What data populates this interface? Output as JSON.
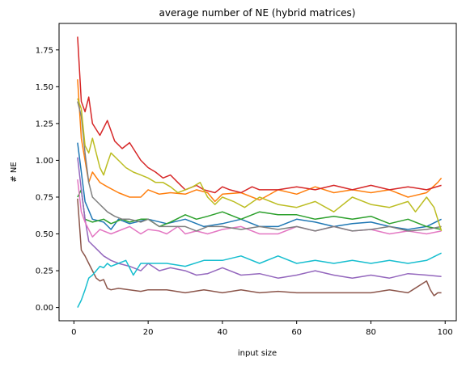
{
  "chart_data": {
    "type": "line",
    "title": "average number of NE (hybrid matrices)",
    "xlabel": "input size",
    "ylabel": "# NE",
    "xlim": [
      -4,
      103
    ],
    "ylim": [
      -0.09,
      1.93
    ],
    "xticks": [
      0,
      20,
      40,
      60,
      80,
      100
    ],
    "xtick_labels": [
      "0",
      "20",
      "40",
      "60",
      "80",
      "100"
    ],
    "yticks": [
      0.0,
      0.25,
      0.5,
      0.75,
      1.0,
      1.25,
      1.5,
      1.75
    ],
    "ytick_labels": [
      "0.00",
      "0.25",
      "0.50",
      "0.75",
      "1.00",
      "1.25",
      "1.50",
      "1.75"
    ],
    "grid": false,
    "legend": "none",
    "series": [
      {
        "color": "#1f77b4",
        "x": [
          1,
          3,
          5,
          8,
          10,
          12,
          15,
          20,
          25,
          30,
          35,
          40,
          45,
          50,
          55,
          60,
          65,
          70,
          75,
          80,
          85,
          90,
          95,
          99
        ],
        "values": [
          1.12,
          0.72,
          0.6,
          0.58,
          0.53,
          0.6,
          0.57,
          0.6,
          0.57,
          0.6,
          0.55,
          0.57,
          0.6,
          0.55,
          0.55,
          0.6,
          0.58,
          0.55,
          0.57,
          0.58,
          0.55,
          0.53,
          0.55,
          0.6
        ]
      },
      {
        "color": "#ff7f0e",
        "x": [
          1,
          2,
          3,
          4,
          5,
          7,
          9,
          12,
          15,
          18,
          20,
          23,
          26,
          30,
          33,
          36,
          38,
          40,
          45,
          50,
          55,
          60,
          65,
          70,
          75,
          80,
          85,
          90,
          95,
          98,
          99
        ],
        "values": [
          1.55,
          1.15,
          1.0,
          0.85,
          0.92,
          0.85,
          0.82,
          0.78,
          0.75,
          0.75,
          0.8,
          0.77,
          0.78,
          0.77,
          0.8,
          0.78,
          0.72,
          0.77,
          0.78,
          0.73,
          0.8,
          0.77,
          0.82,
          0.78,
          0.8,
          0.78,
          0.8,
          0.75,
          0.78,
          0.85,
          0.88
        ]
      },
      {
        "color": "#2ca02c",
        "x": [
          1,
          2,
          3,
          5,
          8,
          10,
          13,
          15,
          18,
          20,
          23,
          26,
          30,
          33,
          36,
          40,
          45,
          50,
          55,
          60,
          65,
          70,
          75,
          80,
          85,
          90,
          95,
          99
        ],
        "values": [
          0.75,
          0.8,
          0.6,
          0.58,
          0.6,
          0.57,
          0.6,
          0.58,
          0.6,
          0.6,
          0.55,
          0.58,
          0.63,
          0.6,
          0.62,
          0.65,
          0.6,
          0.65,
          0.63,
          0.63,
          0.6,
          0.62,
          0.6,
          0.62,
          0.57,
          0.6,
          0.55,
          0.53
        ]
      },
      {
        "color": "#d62728",
        "x": [
          1,
          2,
          3,
          4,
          5,
          7,
          9,
          11,
          13,
          15,
          18,
          20,
          22,
          24,
          26,
          28,
          30,
          33,
          35,
          38,
          40,
          42,
          45,
          48,
          50,
          55,
          60,
          65,
          70,
          75,
          80,
          85,
          90,
          95,
          99
        ],
        "values": [
          1.84,
          1.4,
          1.33,
          1.43,
          1.25,
          1.17,
          1.27,
          1.13,
          1.08,
          1.12,
          1.0,
          0.95,
          0.92,
          0.88,
          0.9,
          0.85,
          0.8,
          0.83,
          0.8,
          0.78,
          0.82,
          0.8,
          0.78,
          0.82,
          0.8,
          0.8,
          0.82,
          0.8,
          0.83,
          0.8,
          0.83,
          0.8,
          0.82,
          0.8,
          0.83
        ]
      },
      {
        "color": "#9467bd",
        "x": [
          1,
          2,
          3,
          4,
          6,
          8,
          10,
          12,
          15,
          18,
          20,
          23,
          26,
          30,
          33,
          36,
          40,
          45,
          50,
          55,
          60,
          65,
          70,
          75,
          80,
          85,
          90,
          95,
          99
        ],
        "values": [
          1.02,
          0.8,
          0.6,
          0.45,
          0.4,
          0.35,
          0.32,
          0.3,
          0.28,
          0.25,
          0.3,
          0.25,
          0.27,
          0.25,
          0.22,
          0.23,
          0.27,
          0.22,
          0.23,
          0.2,
          0.22,
          0.25,
          0.22,
          0.2,
          0.22,
          0.2,
          0.23,
          0.22,
          0.21
        ]
      },
      {
        "color": "#8c564b",
        "x": [
          1,
          2,
          3,
          4,
          5,
          6,
          7,
          8,
          9,
          10,
          12,
          15,
          18,
          20,
          25,
          30,
          35,
          40,
          45,
          50,
          55,
          60,
          65,
          70,
          75,
          80,
          85,
          90,
          95,
          96,
          97,
          98,
          99
        ],
        "values": [
          0.74,
          0.39,
          0.35,
          0.3,
          0.25,
          0.2,
          0.18,
          0.19,
          0.13,
          0.12,
          0.13,
          0.12,
          0.11,
          0.12,
          0.12,
          0.1,
          0.12,
          0.1,
          0.12,
          0.1,
          0.11,
          0.1,
          0.1,
          0.1,
          0.1,
          0.1,
          0.12,
          0.1,
          0.18,
          0.12,
          0.08,
          0.1,
          0.1
        ]
      },
      {
        "color": "#e377c2",
        "x": [
          1,
          2,
          3,
          5,
          7,
          10,
          13,
          15,
          18,
          20,
          23,
          25,
          28,
          30,
          33,
          36,
          40,
          45,
          50,
          55,
          60,
          65,
          70,
          75,
          80,
          85,
          90,
          95,
          99
        ],
        "values": [
          0.87,
          0.65,
          0.58,
          0.48,
          0.53,
          0.5,
          0.53,
          0.55,
          0.5,
          0.53,
          0.52,
          0.5,
          0.55,
          0.5,
          0.52,
          0.5,
          0.53,
          0.55,
          0.5,
          0.5,
          0.55,
          0.52,
          0.55,
          0.52,
          0.53,
          0.5,
          0.52,
          0.5,
          0.52
        ]
      },
      {
        "color": "#7f7f7f",
        "x": [
          1,
          2,
          3,
          4,
          5,
          7,
          9,
          11,
          13,
          15,
          18,
          20,
          23,
          26,
          30,
          33,
          36,
          40,
          45,
          50,
          55,
          60,
          65,
          70,
          75,
          80,
          85,
          90,
          95,
          99
        ],
        "values": [
          1.4,
          1.3,
          1.05,
          0.85,
          0.75,
          0.7,
          0.65,
          0.62,
          0.6,
          0.6,
          0.58,
          0.6,
          0.55,
          0.55,
          0.55,
          0.52,
          0.55,
          0.55,
          0.53,
          0.55,
          0.53,
          0.55,
          0.52,
          0.55,
          0.52,
          0.53,
          0.55,
          0.52,
          0.53,
          0.55
        ]
      },
      {
        "color": "#bcbd22",
        "x": [
          1,
          2,
          3,
          4,
          5,
          6,
          7,
          8,
          9,
          10,
          12,
          14,
          16,
          18,
          20,
          22,
          24,
          26,
          28,
          30,
          32,
          34,
          36,
          38,
          40,
          43,
          46,
          50,
          55,
          60,
          65,
          70,
          75,
          80,
          85,
          90,
          92,
          95,
          97,
          99
        ],
        "values": [
          1.42,
          1.35,
          1.1,
          1.05,
          1.15,
          1.05,
          0.95,
          0.9,
          0.98,
          1.05,
          1.0,
          0.95,
          0.92,
          0.9,
          0.88,
          0.85,
          0.85,
          0.82,
          0.78,
          0.8,
          0.82,
          0.85,
          0.75,
          0.7,
          0.75,
          0.72,
          0.68,
          0.75,
          0.7,
          0.68,
          0.72,
          0.65,
          0.75,
          0.7,
          0.68,
          0.72,
          0.65,
          0.75,
          0.68,
          0.52
        ]
      },
      {
        "color": "#17becf",
        "x": [
          1,
          2,
          3,
          4,
          5,
          6,
          7,
          8,
          9,
          10,
          12,
          14,
          16,
          18,
          20,
          25,
          30,
          35,
          40,
          45,
          50,
          55,
          60,
          65,
          70,
          75,
          80,
          85,
          90,
          95,
          99
        ],
        "values": [
          0.0,
          0.05,
          0.12,
          0.2,
          0.22,
          0.25,
          0.28,
          0.27,
          0.3,
          0.28,
          0.3,
          0.32,
          0.22,
          0.3,
          0.3,
          0.3,
          0.28,
          0.32,
          0.32,
          0.35,
          0.3,
          0.35,
          0.3,
          0.32,
          0.3,
          0.32,
          0.3,
          0.32,
          0.3,
          0.32,
          0.37
        ]
      }
    ]
  }
}
